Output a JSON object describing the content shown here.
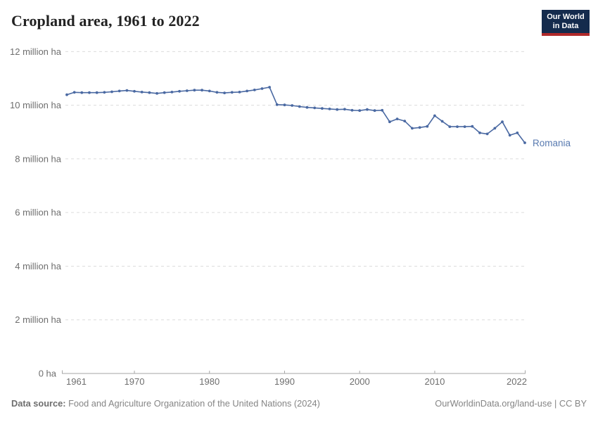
{
  "header": {
    "title": "Cropland area, 1961 to 2022",
    "logo": {
      "line1": "Our World",
      "line2": "in Data",
      "bg_color": "#142b4d",
      "bar_color": "#b0292a"
    }
  },
  "chart_data": {
    "type": "line",
    "title": "Cropland area, 1961 to 2022",
    "entity_label": "Romania",
    "unit": "million ha",
    "xlim": [
      1961,
      2022
    ],
    "ylim": [
      0,
      12
    ],
    "grid": "horizontal-dashed",
    "legend_position": "end-of-line-label",
    "series_color": "#4a69a2",
    "entity_label_color": "#587ab0",
    "years": [
      1961,
      1962,
      1963,
      1964,
      1965,
      1966,
      1967,
      1968,
      1969,
      1970,
      1971,
      1972,
      1973,
      1974,
      1975,
      1976,
      1977,
      1978,
      1979,
      1980,
      1981,
      1982,
      1983,
      1984,
      1985,
      1986,
      1987,
      1988,
      1989,
      1990,
      1991,
      1992,
      1993,
      1994,
      1995,
      1996,
      1997,
      1998,
      1999,
      2000,
      2001,
      2002,
      2003,
      2004,
      2005,
      2006,
      2007,
      2008,
      2009,
      2010,
      2011,
      2012,
      2013,
      2014,
      2015,
      2016,
      2017,
      2018,
      2019,
      2020,
      2021,
      2022
    ],
    "values_million_ha": [
      10.39,
      10.48,
      10.47,
      10.47,
      10.47,
      10.48,
      10.5,
      10.53,
      10.55,
      10.52,
      10.49,
      10.47,
      10.44,
      10.47,
      10.49,
      10.52,
      10.54,
      10.56,
      10.56,
      10.53,
      10.48,
      10.46,
      10.48,
      10.49,
      10.53,
      10.57,
      10.62,
      10.67,
      10.02,
      10.01,
      9.99,
      9.95,
      9.92,
      9.9,
      9.88,
      9.86,
      9.84,
      9.85,
      9.81,
      9.8,
      9.84,
      9.8,
      9.81,
      9.38,
      9.49,
      9.41,
      9.14,
      9.17,
      9.21,
      9.61,
      9.4,
      9.2,
      9.2,
      9.2,
      9.21,
      8.97,
      8.93,
      9.14,
      9.38,
      8.88,
      8.97,
      8.6
    ],
    "y_ticks": [
      {
        "value": 12,
        "label": "12 million ha"
      },
      {
        "value": 10,
        "label": "10 million ha"
      },
      {
        "value": 8,
        "label": "8 million ha"
      },
      {
        "value": 6,
        "label": "6 million ha"
      },
      {
        "value": 4,
        "label": "4 million ha"
      },
      {
        "value": 2,
        "label": "2 million ha"
      },
      {
        "value": 0,
        "label": "0 ha"
      }
    ],
    "x_ticks": [
      {
        "year": 1961,
        "label": "1961"
      },
      {
        "year": 1970,
        "label": "1970"
      },
      {
        "year": 1980,
        "label": "1980"
      },
      {
        "year": 1990,
        "label": "1990"
      },
      {
        "year": 2000,
        "label": "2000"
      },
      {
        "year": 2010,
        "label": "2010"
      },
      {
        "year": 2022,
        "label": "2022"
      }
    ]
  },
  "footer": {
    "source_label": "Data source:",
    "source_text": " Food and Agriculture Organization of the United Nations (2024)",
    "link_text": "OurWorldinData.org/land-use",
    "license_text": " | CC BY"
  }
}
